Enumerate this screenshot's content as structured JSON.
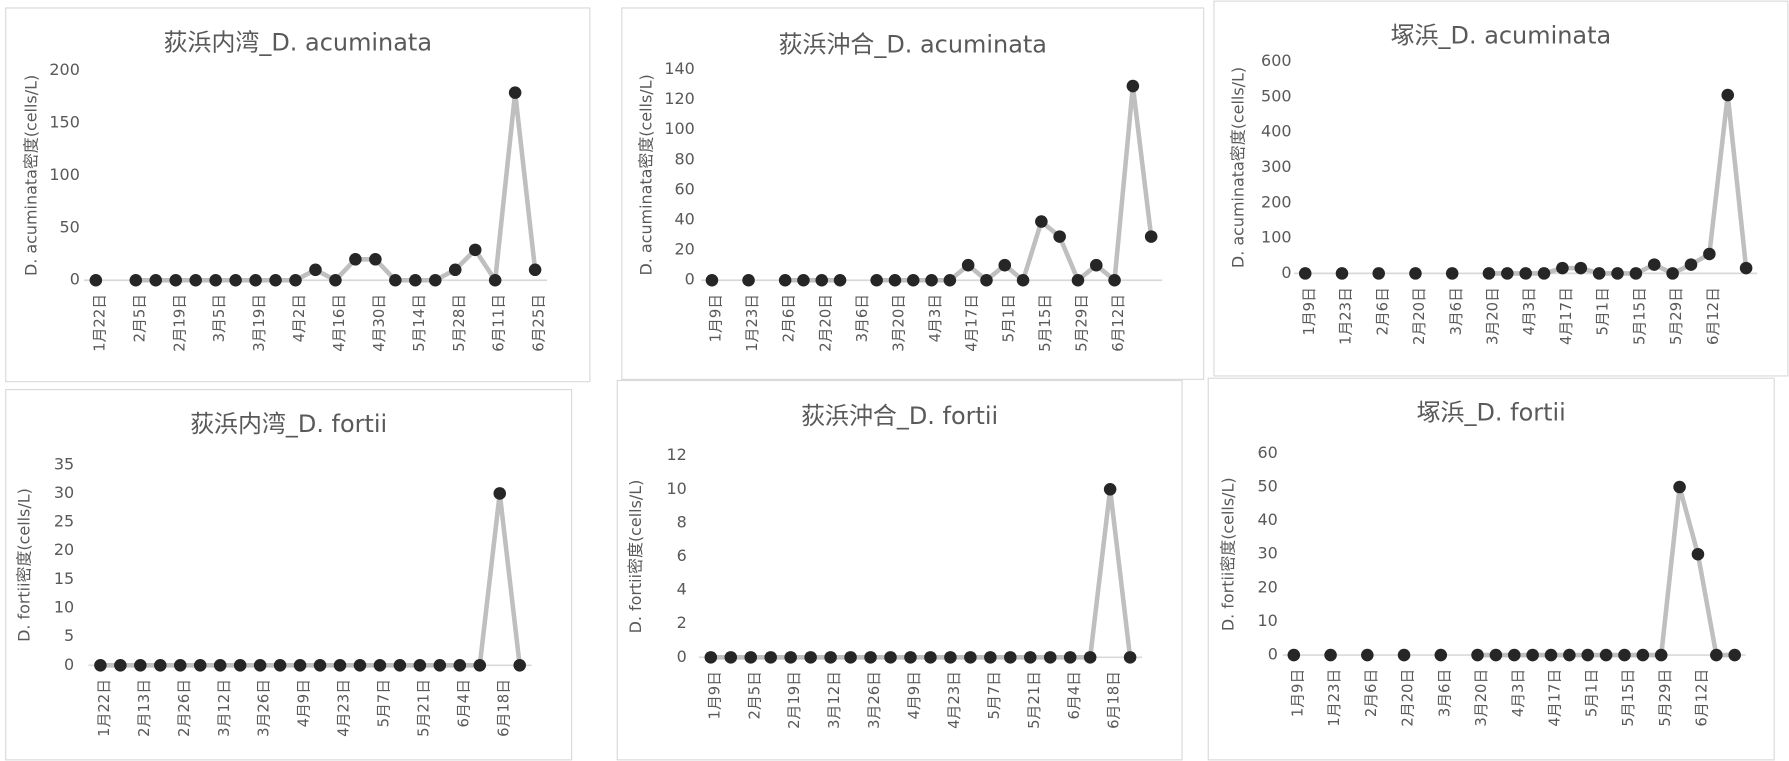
{
  "chart_data": [
    {
      "type": "line",
      "title": "荻浜内湾_D. acuminata",
      "y_label": "D. acuminata密度(cells/L)",
      "categories": [
        "1月22日",
        null,
        "2月5日",
        null,
        "2月19日",
        null,
        "3月5日",
        null,
        "3月19日",
        null,
        "4月2日",
        null,
        "4月16日",
        null,
        "4月30日",
        null,
        "5月14日",
        null,
        "5月28日",
        null,
        "6月11日",
        null,
        "6月25日"
      ],
      "values": [
        0,
        null,
        0,
        0,
        0,
        0,
        0,
        0,
        0,
        0,
        0,
        10,
        0,
        20,
        20,
        0,
        0,
        0,
        10,
        29,
        0,
        179,
        10
      ],
      "line_color": "#bfbfbf",
      "marker_color": "#262626",
      "ylim": [
        0,
        200
      ],
      "yticks": [
        0,
        50,
        100,
        150,
        200
      ]
    },
    {
      "type": "line",
      "title": "荻浜沖合_D. acuminata",
      "y_label": "D. acuminata密度(cells/L)",
      "categories": [
        "1月9日",
        null,
        "1月23日",
        null,
        "2月6日",
        null,
        "2月20日",
        null,
        "3月6日",
        null,
        "3月20日",
        null,
        "4月3日",
        null,
        "4月17日",
        null,
        "5月1日",
        null,
        "5月15日",
        null,
        "5月29日",
        null,
        "6月12日",
        null,
        null
      ],
      "values": [
        0,
        null,
        0,
        null,
        0,
        0,
        0,
        0,
        null,
        0,
        0,
        0,
        0,
        0,
        10,
        0,
        10,
        0,
        39,
        29,
        0,
        10,
        0,
        129,
        29
      ],
      "line_color": "#bfbfbf",
      "marker_color": "#262626",
      "ylim": [
        0,
        140
      ],
      "yticks": [
        0,
        20,
        40,
        60,
        80,
        100,
        120,
        140
      ]
    },
    {
      "type": "line",
      "title": "塚浜_D. acuminata",
      "y_label": "D. acuminata密度(cells/L)",
      "categories": [
        "1月9日",
        null,
        "1月23日",
        null,
        "2月6日",
        null,
        "2月20日",
        null,
        "3月6日",
        null,
        "3月20日",
        null,
        "4月3日",
        null,
        "4月17日",
        null,
        "5月1日",
        null,
        "5月15日",
        null,
        "5月29日",
        null,
        "6月12日",
        null,
        null
      ],
      "values": [
        0,
        null,
        0,
        null,
        0,
        null,
        0,
        null,
        0,
        null,
        0,
        0,
        0,
        0,
        15,
        15,
        0,
        0,
        0,
        25,
        0,
        25,
        55,
        505,
        15
      ],
      "line_color": "#bfbfbf",
      "marker_color": "#262626",
      "ylim": [
        0,
        600
      ],
      "yticks": [
        0,
        100,
        200,
        300,
        400,
        500,
        600
      ]
    },
    {
      "type": "line",
      "title": "荻浜内湾_D. fortii",
      "y_label": "D. fortii密度(cells/L)",
      "categories": [
        "1月22日",
        null,
        "2月13日",
        null,
        "2月26日",
        null,
        "3月12日",
        null,
        "3月26日",
        null,
        "4月9日",
        null,
        "4月23日",
        null,
        "5月7日",
        null,
        "5月21日",
        null,
        "6月4日",
        null,
        "6月18日",
        null
      ],
      "values": [
        0,
        0,
        0,
        0,
        0,
        0,
        0,
        0,
        0,
        0,
        0,
        0,
        0,
        0,
        0,
        0,
        0,
        0,
        0,
        0,
        30,
        0
      ],
      "line_color": "#bfbfbf",
      "marker_color": "#262626",
      "ylim": [
        0,
        35
      ],
      "yticks": [
        0,
        5,
        10,
        15,
        20,
        25,
        30,
        35
      ]
    },
    {
      "type": "line",
      "title": "荻浜沖合_D. fortii",
      "y_label": "D. fortii密度(cells/L)",
      "categories": [
        "1月9日",
        null,
        "2月5日",
        null,
        "2月19日",
        null,
        "3月12日",
        null,
        "3月26日",
        null,
        "4月9日",
        null,
        "4月23日",
        null,
        "5月7日",
        null,
        "5月21日",
        null,
        "6月4日",
        null,
        "6月18日",
        null
      ],
      "values": [
        0,
        0,
        0,
        0,
        0,
        0,
        0,
        0,
        0,
        0,
        0,
        0,
        0,
        0,
        0,
        0,
        0,
        0,
        0,
        0,
        10,
        0
      ],
      "line_color": "#bfbfbf",
      "marker_color": "#262626",
      "ylim": [
        0,
        12
      ],
      "yticks": [
        0,
        2,
        4,
        6,
        8,
        10,
        12
      ]
    },
    {
      "type": "line",
      "title": "塚浜_D. fortii",
      "y_label": "D. fortii密度(cells/L)",
      "categories": [
        "1月9日",
        null,
        "1月23日",
        null,
        "2月6日",
        null,
        "2月20日",
        null,
        "3月6日",
        null,
        "3月20日",
        null,
        "4月3日",
        null,
        "4月17日",
        null,
        "5月1日",
        null,
        "5月15日",
        null,
        "5月29日",
        null,
        "6月12日",
        null,
        null
      ],
      "values": [
        0,
        null,
        0,
        null,
        0,
        null,
        0,
        null,
        0,
        null,
        0,
        0,
        0,
        0,
        0,
        0,
        0,
        0,
        0,
        0,
        0,
        50,
        30,
        0,
        0
      ],
      "line_color": "#bfbfbf",
      "marker_color": "#262626",
      "ylim": [
        0,
        60
      ],
      "yticks": [
        0,
        10,
        20,
        30,
        40,
        50,
        60
      ]
    }
  ]
}
